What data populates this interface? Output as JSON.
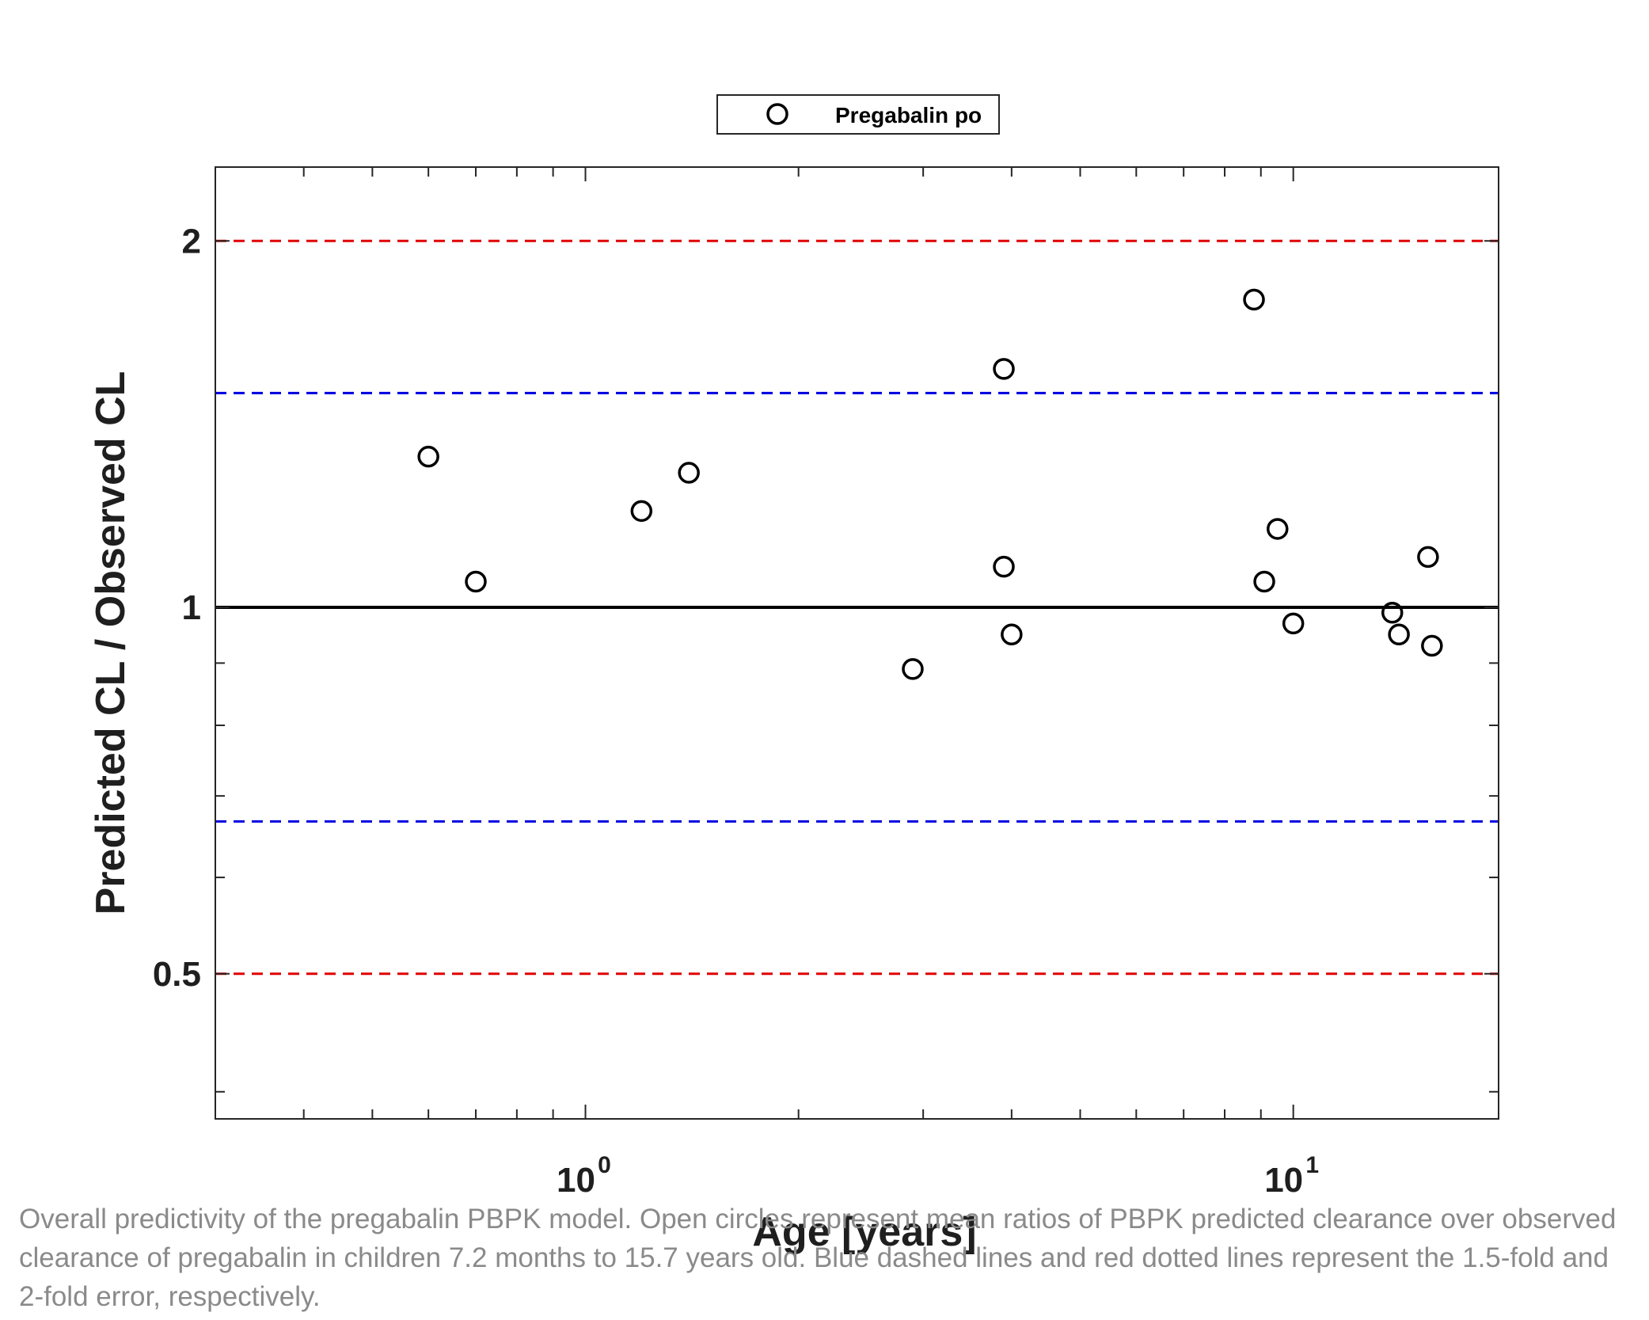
{
  "chart_data": {
    "type": "scatter",
    "xlabel": "Age [years]",
    "ylabel": "Predicted CL / Observed CL",
    "x_scale": "log",
    "y_scale": "log",
    "xlim": [
      0.3,
      19.5
    ],
    "ylim": [
      0.38,
      2.3
    ],
    "x_ticks": [
      {
        "base": "10",
        "exp": "0",
        "value": 1
      },
      {
        "base": "10",
        "exp": "1",
        "value": 10
      }
    ],
    "y_ticks": [
      {
        "label": "0.5",
        "value": 0.5
      },
      {
        "label": "1",
        "value": 1
      },
      {
        "label": "2",
        "value": 2
      }
    ],
    "reference_lines": [
      {
        "y": 2.0,
        "color": "#e00000",
        "style": "dashed"
      },
      {
        "y": 1.5,
        "color": "#0000e0",
        "style": "dashed"
      },
      {
        "y": 1.0,
        "color": "#000000",
        "style": "solid"
      },
      {
        "y": 0.667,
        "color": "#0000e0",
        "style": "dashed"
      },
      {
        "y": 0.5,
        "color": "#e00000",
        "style": "dashed"
      }
    ],
    "legend": {
      "placement": "top-center"
    },
    "series": [
      {
        "name": "Pregabalin po",
        "marker": "open-circle",
        "color": "#000000",
        "x": [
          0.6,
          0.7,
          1.2,
          1.4,
          2.9,
          3.9,
          3.9,
          4.0,
          8.8,
          9.1,
          9.5,
          10.0,
          13.8,
          14.1,
          15.5,
          15.7
        ],
        "y": [
          1.33,
          1.05,
          1.2,
          1.29,
          0.89,
          1.57,
          1.08,
          0.95,
          1.79,
          1.05,
          1.16,
          0.97,
          0.99,
          0.95,
          1.1,
          0.93
        ]
      }
    ]
  },
  "caption": "Overall predictivity of the pregabalin PBPK model. Open circles represent mean ratios of PBPK predicted clearance over observed clearance of pregabalin in children 7.2 months to 15.7 years old. Blue dashed lines and red dotted lines represent the 1.5-fold and 2-fold error, respectively."
}
